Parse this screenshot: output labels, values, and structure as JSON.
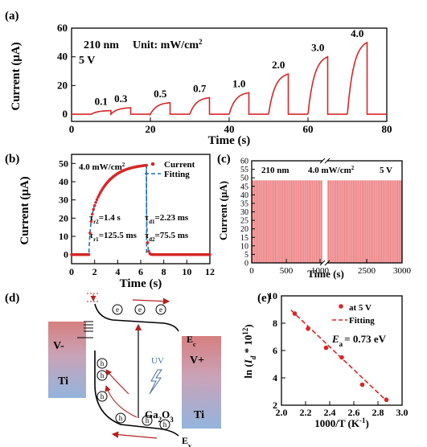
{
  "chart_data": [
    {
      "panel": "(a)",
      "type": "line",
      "annotations": [
        "210 nm",
        "Unit: mW/cm²",
        "5 V"
      ],
      "xlabel": "Time (s)",
      "ylabel": "Current (μA)",
      "xlim": [
        0,
        80
      ],
      "ylim": [
        -5,
        60
      ],
      "xticks": [
        0,
        20,
        40,
        60,
        80
      ],
      "yticks": [
        0,
        20,
        40,
        60
      ],
      "color": "#d62728",
      "pulses": [
        {
          "label": "0.1",
          "on": 5,
          "off": 10,
          "peak": 2.5
        },
        {
          "label": "0.3",
          "on": 10,
          "off": 15,
          "peak": 4.5
        },
        {
          "label": "0.5",
          "on": 20,
          "off": 25,
          "peak": 8
        },
        {
          "label": "0.7",
          "on": 30,
          "off": 35,
          "peak": 11.5
        },
        {
          "label": "1.0",
          "on": 40,
          "off": 45,
          "peak": 15
        },
        {
          "label": "2.0",
          "on": 50,
          "off": 55,
          "peak": 28
        },
        {
          "label": "3.0",
          "on": 60,
          "off": 65,
          "peak": 40
        },
        {
          "label": "4.0",
          "on": 70,
          "off": 75,
          "peak": 50
        }
      ]
    },
    {
      "panel": "(b)",
      "type": "scatter",
      "title": "4.0 mW/cm²",
      "xlabel": "Time (s)",
      "ylabel": "Current (μA)",
      "xlim": [
        0,
        12
      ],
      "ylim": [
        -5,
        55
      ],
      "xticks": [
        0,
        2,
        4,
        6,
        8,
        10,
        12
      ],
      "yticks": [
        0,
        10,
        20,
        30,
        40,
        50
      ],
      "legend": [
        "Current",
        "Fitting"
      ],
      "legend_position": "top-right",
      "on_time": 1.5,
      "off_time": 6.5,
      "peak": 49,
      "rise_params": [
        "τr2=1.4 s",
        "τr1=125.5 ms"
      ],
      "decay_params": [
        "τd1=2.23 ms",
        "τd2=75.5 ms"
      ]
    },
    {
      "panel": "(c)",
      "type": "line",
      "annotations": [
        "210 nm",
        "4.0 mW/cm²",
        "5 V"
      ],
      "xlabel": "Time (s)",
      "ylabel": "Current (μA)",
      "xticks": [
        "0",
        "500",
        "1000",
        "2500",
        "3000"
      ],
      "yticks": [
        0,
        5,
        10,
        15,
        20,
        25,
        30,
        35,
        40,
        45,
        50,
        55,
        60
      ],
      "ylim": [
        0,
        60
      ],
      "peak": 48.5,
      "axis_break": true
    },
    {
      "panel": "(e)",
      "type": "scatter",
      "xlabel": "1000/T (K⁻¹)",
      "ylabel": "ln (Id * 10¹²)",
      "xlim": [
        2.0,
        3.0
      ],
      "ylim": [
        2,
        10
      ],
      "xticks": [
        "2.0",
        "2.2",
        "2.4",
        "2.6",
        "2.8",
        "3.0"
      ],
      "yticks": [
        2,
        4,
        6,
        8,
        10
      ],
      "legend": [
        "at 5 V",
        "Fitting"
      ],
      "legend_position": "top-right",
      "annotation": "Ea = 0.73 eV",
      "points": [
        {
          "x": 2.11,
          "y": 8.7
        },
        {
          "x": 2.22,
          "y": 7.6
        },
        {
          "x": 2.37,
          "y": 6.2
        },
        {
          "x": 2.5,
          "y": 5.5
        },
        {
          "x": 2.67,
          "y": 3.5
        },
        {
          "x": 2.87,
          "y": 2.4
        }
      ],
      "fit": {
        "x": [
          2.08,
          2.88
        ],
        "y": [
          8.95,
          2.25
        ]
      }
    }
  ],
  "diagram_d": {
    "panel": "(d)",
    "left_contact": "Ti",
    "left_bias": "V-",
    "right_contact": "Ti",
    "right_bias": "V+",
    "material": "Ga₂O₃",
    "uv_label": "UV",
    "conduction_band": "Ec",
    "valence_band": "Ev",
    "electron_symbol": "e",
    "hole_symbol": "h"
  }
}
